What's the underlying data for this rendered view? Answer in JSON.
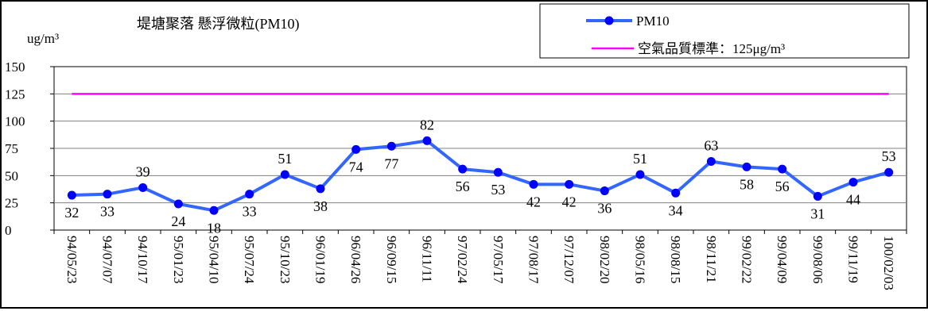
{
  "chart_data": {
    "type": "line",
    "title": "堤塘聚落 懸浮微粒(PM10)",
    "ylabel": "ug/m³",
    "xlabel": "",
    "ylim": [
      0,
      150
    ],
    "yticks": [
      "0",
      "25",
      "50",
      "75",
      "100",
      "125",
      "150"
    ],
    "grid": true,
    "legend_position": "top-right",
    "categories": [
      "94/05/23",
      "94/07/07",
      "94/10/17",
      "95/01/23",
      "95/04/10",
      "95/07/24",
      "95/10/23",
      "96/01/19",
      "96/04/26",
      "96/09/15",
      "96/11/11",
      "97/02/24",
      "97/05/17",
      "97/08/17",
      "97/12/07",
      "98/02/20",
      "98/05/16",
      "98/08/15",
      "98/11/21",
      "99/02/22",
      "99/04/09",
      "99/08/06",
      "99/11/19",
      "100/02/03"
    ],
    "series": [
      {
        "name": "PM10",
        "color": "#3366FF",
        "marker": "circle",
        "values": [
          32,
          33,
          39,
          24,
          18,
          33,
          51,
          38,
          74,
          77,
          82,
          56,
          53,
          42,
          42,
          36,
          51,
          34,
          63,
          58,
          56,
          31,
          44,
          53
        ],
        "labels": [
          "32",
          "33",
          "39",
          "24",
          "18",
          "33",
          "51",
          "38",
          "74",
          "77",
          "82",
          "56",
          "53",
          "42",
          "42",
          "36",
          "51",
          "34",
          "63",
          "58",
          "56",
          "31",
          "44",
          "53"
        ]
      },
      {
        "name": "空氣品質標準：125μg/m³",
        "color": "#FF00FF",
        "values": [
          125,
          125,
          125,
          125,
          125,
          125,
          125,
          125,
          125,
          125,
          125,
          125,
          125,
          125,
          125,
          125,
          125,
          125,
          125,
          125,
          125,
          125,
          125,
          125
        ]
      }
    ]
  }
}
